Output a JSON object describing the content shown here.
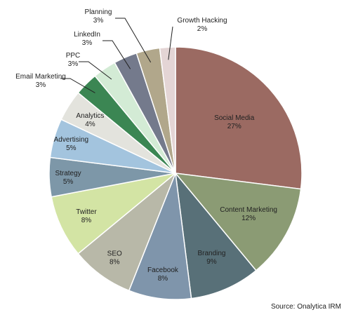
{
  "chart_data": {
    "type": "pie",
    "title": "",
    "source": "Source: Onalytica IRM",
    "slices": [
      {
        "label": "Social Media",
        "value": 27,
        "display": "27%",
        "color": "#9b6a62"
      },
      {
        "label": "Content Marketing",
        "value": 12,
        "display": "12%",
        "color": "#8b9b74"
      },
      {
        "label": "Branding",
        "value": 9,
        "display": "9%",
        "color": "#587078"
      },
      {
        "label": "Facebook",
        "value": 8,
        "display": "8%",
        "color": "#7f95ab"
      },
      {
        "label": "SEO",
        "value": 8,
        "display": "8%",
        "color": "#b8b8a8"
      },
      {
        "label": "Twitter",
        "value": 8,
        "display": "8%",
        "color": "#d3e4a4"
      },
      {
        "label": "Strategy",
        "value": 5,
        "display": "5%",
        "color": "#7d97a8"
      },
      {
        "label": "Advertising",
        "value": 5,
        "display": "5%",
        "color": "#a3c4de"
      },
      {
        "label": "Analytics",
        "value": 4,
        "display": "4%",
        "color": "#e3e3dd"
      },
      {
        "label": "Email Marketing",
        "value": 3,
        "display": "3%",
        "color": "#3b8653"
      },
      {
        "label": "PPC",
        "value": 3,
        "display": "3%",
        "color": "#d3ebd5"
      },
      {
        "label": "LinkedIn",
        "value": 3,
        "display": "3%",
        "color": "#747a8c"
      },
      {
        "label": "Planning",
        "value": 3,
        "display": "3%",
        "color": "#b1a78b"
      },
      {
        "label": "Growth Hacking",
        "value": 2,
        "display": "2%",
        "color": "#e4d5d5"
      }
    ]
  }
}
